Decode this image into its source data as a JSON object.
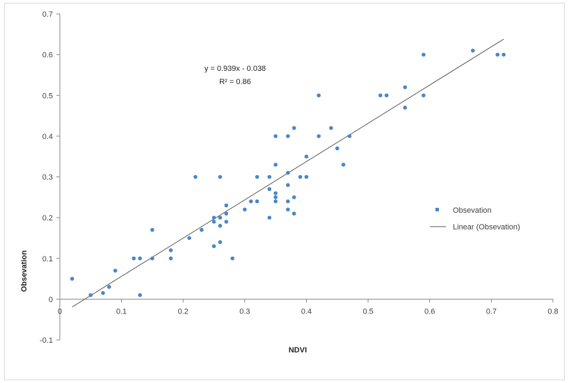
{
  "chart_data": {
    "type": "scatter",
    "xlabel": "NDVI",
    "ylabel": "Obsevation",
    "xlim": [
      0,
      0.8
    ],
    "ylim": [
      -0.1,
      0.7
    ],
    "x_ticks": [
      "0",
      "0.1",
      "0.2",
      "0.3",
      "0.4",
      "0.5",
      "0.6",
      "0.7",
      "0.8"
    ],
    "y_ticks": [
      "-0.1",
      "0",
      "0.1",
      "0.2",
      "0.3",
      "0.4",
      "0.5",
      "0.6",
      "0.7"
    ],
    "grid": false,
    "legend_position": "right",
    "series": [
      {
        "name": "Obsevation",
        "marker_color": "#4a86c8",
        "points": [
          [
            0.02,
            0.05
          ],
          [
            0.05,
            0.01
          ],
          [
            0.07,
            0.015
          ],
          [
            0.08,
            0.03
          ],
          [
            0.09,
            0.07
          ],
          [
            0.12,
            0.1
          ],
          [
            0.13,
            0.1
          ],
          [
            0.13,
            0.01
          ],
          [
            0.15,
            0.1
          ],
          [
            0.15,
            0.17
          ],
          [
            0.18,
            0.1
          ],
          [
            0.18,
            0.12
          ],
          [
            0.21,
            0.15
          ],
          [
            0.22,
            0.3
          ],
          [
            0.23,
            0.17
          ],
          [
            0.25,
            0.2
          ],
          [
            0.25,
            0.19
          ],
          [
            0.25,
            0.13
          ],
          [
            0.26,
            0.3
          ],
          [
            0.26,
            0.18
          ],
          [
            0.26,
            0.14
          ],
          [
            0.26,
            0.2
          ],
          [
            0.27,
            0.23
          ],
          [
            0.27,
            0.21
          ],
          [
            0.27,
            0.19
          ],
          [
            0.28,
            0.1
          ],
          [
            0.3,
            0.22
          ],
          [
            0.31,
            0.24
          ],
          [
            0.32,
            0.3
          ],
          [
            0.32,
            0.24
          ],
          [
            0.34,
            0.3
          ],
          [
            0.34,
            0.27
          ],
          [
            0.34,
            0.2
          ],
          [
            0.35,
            0.4
          ],
          [
            0.35,
            0.33
          ],
          [
            0.35,
            0.26
          ],
          [
            0.35,
            0.25
          ],
          [
            0.35,
            0.24
          ],
          [
            0.37,
            0.4
          ],
          [
            0.37,
            0.31
          ],
          [
            0.37,
            0.28
          ],
          [
            0.37,
            0.24
          ],
          [
            0.37,
            0.22
          ],
          [
            0.38,
            0.42
          ],
          [
            0.38,
            0.25
          ],
          [
            0.38,
            0.21
          ],
          [
            0.39,
            0.3
          ],
          [
            0.4,
            0.35
          ],
          [
            0.4,
            0.3
          ],
          [
            0.42,
            0.5
          ],
          [
            0.42,
            0.4
          ],
          [
            0.44,
            0.42
          ],
          [
            0.45,
            0.37
          ],
          [
            0.46,
            0.33
          ],
          [
            0.47,
            0.4
          ],
          [
            0.52,
            0.5
          ],
          [
            0.53,
            0.5
          ],
          [
            0.56,
            0.52
          ],
          [
            0.56,
            0.47
          ],
          [
            0.59,
            0.6
          ],
          [
            0.59,
            0.5
          ],
          [
            0.67,
            0.61
          ],
          [
            0.71,
            0.6
          ],
          [
            0.72,
            0.6
          ]
        ]
      },
      {
        "name": "Linear (Obsevation)",
        "line_color": "#555555",
        "x_range": [
          0.02,
          0.72
        ],
        "slope": 0.939,
        "intercept": -0.038
      }
    ],
    "annotations": {
      "equation": "y = 0.939x - 0.038",
      "r_squared": "R² = 0.86"
    }
  }
}
